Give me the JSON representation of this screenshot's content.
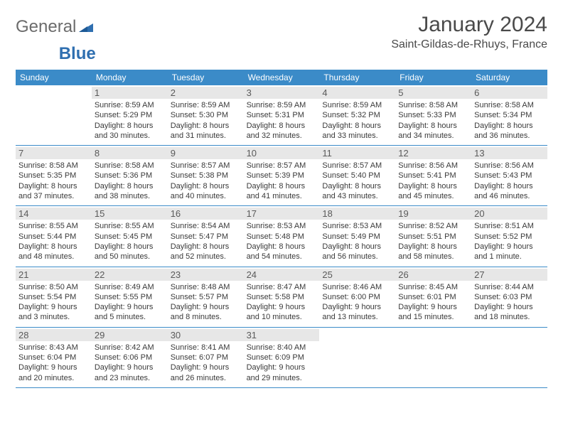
{
  "logo": {
    "text1": "General",
    "text2": "Blue"
  },
  "title": "January 2024",
  "location": "Saint-Gildas-de-Rhuys, France",
  "colors": {
    "header_bg": "#3b8bc8",
    "header_text": "#ffffff",
    "daynum_bg": "#e7e7e7",
    "border": "#3b8bc8",
    "logo_gray": "#6b6b6b",
    "logo_blue": "#2f6fb0"
  },
  "weekdays": [
    "Sunday",
    "Monday",
    "Tuesday",
    "Wednesday",
    "Thursday",
    "Friday",
    "Saturday"
  ],
  "weeks": [
    [
      {
        "n": "",
        "lines": []
      },
      {
        "n": "1",
        "lines": [
          "Sunrise: 8:59 AM",
          "Sunset: 5:29 PM",
          "Daylight: 8 hours",
          "and 30 minutes."
        ]
      },
      {
        "n": "2",
        "lines": [
          "Sunrise: 8:59 AM",
          "Sunset: 5:30 PM",
          "Daylight: 8 hours",
          "and 31 minutes."
        ]
      },
      {
        "n": "3",
        "lines": [
          "Sunrise: 8:59 AM",
          "Sunset: 5:31 PM",
          "Daylight: 8 hours",
          "and 32 minutes."
        ]
      },
      {
        "n": "4",
        "lines": [
          "Sunrise: 8:59 AM",
          "Sunset: 5:32 PM",
          "Daylight: 8 hours",
          "and 33 minutes."
        ]
      },
      {
        "n": "5",
        "lines": [
          "Sunrise: 8:58 AM",
          "Sunset: 5:33 PM",
          "Daylight: 8 hours",
          "and 34 minutes."
        ]
      },
      {
        "n": "6",
        "lines": [
          "Sunrise: 8:58 AM",
          "Sunset: 5:34 PM",
          "Daylight: 8 hours",
          "and 36 minutes."
        ]
      }
    ],
    [
      {
        "n": "7",
        "lines": [
          "Sunrise: 8:58 AM",
          "Sunset: 5:35 PM",
          "Daylight: 8 hours",
          "and 37 minutes."
        ]
      },
      {
        "n": "8",
        "lines": [
          "Sunrise: 8:58 AM",
          "Sunset: 5:36 PM",
          "Daylight: 8 hours",
          "and 38 minutes."
        ]
      },
      {
        "n": "9",
        "lines": [
          "Sunrise: 8:57 AM",
          "Sunset: 5:38 PM",
          "Daylight: 8 hours",
          "and 40 minutes."
        ]
      },
      {
        "n": "10",
        "lines": [
          "Sunrise: 8:57 AM",
          "Sunset: 5:39 PM",
          "Daylight: 8 hours",
          "and 41 minutes."
        ]
      },
      {
        "n": "11",
        "lines": [
          "Sunrise: 8:57 AM",
          "Sunset: 5:40 PM",
          "Daylight: 8 hours",
          "and 43 minutes."
        ]
      },
      {
        "n": "12",
        "lines": [
          "Sunrise: 8:56 AM",
          "Sunset: 5:41 PM",
          "Daylight: 8 hours",
          "and 45 minutes."
        ]
      },
      {
        "n": "13",
        "lines": [
          "Sunrise: 8:56 AM",
          "Sunset: 5:43 PM",
          "Daylight: 8 hours",
          "and 46 minutes."
        ]
      }
    ],
    [
      {
        "n": "14",
        "lines": [
          "Sunrise: 8:55 AM",
          "Sunset: 5:44 PM",
          "Daylight: 8 hours",
          "and 48 minutes."
        ]
      },
      {
        "n": "15",
        "lines": [
          "Sunrise: 8:55 AM",
          "Sunset: 5:45 PM",
          "Daylight: 8 hours",
          "and 50 minutes."
        ]
      },
      {
        "n": "16",
        "lines": [
          "Sunrise: 8:54 AM",
          "Sunset: 5:47 PM",
          "Daylight: 8 hours",
          "and 52 minutes."
        ]
      },
      {
        "n": "17",
        "lines": [
          "Sunrise: 8:53 AM",
          "Sunset: 5:48 PM",
          "Daylight: 8 hours",
          "and 54 minutes."
        ]
      },
      {
        "n": "18",
        "lines": [
          "Sunrise: 8:53 AM",
          "Sunset: 5:49 PM",
          "Daylight: 8 hours",
          "and 56 minutes."
        ]
      },
      {
        "n": "19",
        "lines": [
          "Sunrise: 8:52 AM",
          "Sunset: 5:51 PM",
          "Daylight: 8 hours",
          "and 58 minutes."
        ]
      },
      {
        "n": "20",
        "lines": [
          "Sunrise: 8:51 AM",
          "Sunset: 5:52 PM",
          "Daylight: 9 hours",
          "and 1 minute."
        ]
      }
    ],
    [
      {
        "n": "21",
        "lines": [
          "Sunrise: 8:50 AM",
          "Sunset: 5:54 PM",
          "Daylight: 9 hours",
          "and 3 minutes."
        ]
      },
      {
        "n": "22",
        "lines": [
          "Sunrise: 8:49 AM",
          "Sunset: 5:55 PM",
          "Daylight: 9 hours",
          "and 5 minutes."
        ]
      },
      {
        "n": "23",
        "lines": [
          "Sunrise: 8:48 AM",
          "Sunset: 5:57 PM",
          "Daylight: 9 hours",
          "and 8 minutes."
        ]
      },
      {
        "n": "24",
        "lines": [
          "Sunrise: 8:47 AM",
          "Sunset: 5:58 PM",
          "Daylight: 9 hours",
          "and 10 minutes."
        ]
      },
      {
        "n": "25",
        "lines": [
          "Sunrise: 8:46 AM",
          "Sunset: 6:00 PM",
          "Daylight: 9 hours",
          "and 13 minutes."
        ]
      },
      {
        "n": "26",
        "lines": [
          "Sunrise: 8:45 AM",
          "Sunset: 6:01 PM",
          "Daylight: 9 hours",
          "and 15 minutes."
        ]
      },
      {
        "n": "27",
        "lines": [
          "Sunrise: 8:44 AM",
          "Sunset: 6:03 PM",
          "Daylight: 9 hours",
          "and 18 minutes."
        ]
      }
    ],
    [
      {
        "n": "28",
        "lines": [
          "Sunrise: 8:43 AM",
          "Sunset: 6:04 PM",
          "Daylight: 9 hours",
          "and 20 minutes."
        ]
      },
      {
        "n": "29",
        "lines": [
          "Sunrise: 8:42 AM",
          "Sunset: 6:06 PM",
          "Daylight: 9 hours",
          "and 23 minutes."
        ]
      },
      {
        "n": "30",
        "lines": [
          "Sunrise: 8:41 AM",
          "Sunset: 6:07 PM",
          "Daylight: 9 hours",
          "and 26 minutes."
        ]
      },
      {
        "n": "31",
        "lines": [
          "Sunrise: 8:40 AM",
          "Sunset: 6:09 PM",
          "Daylight: 9 hours",
          "and 29 minutes."
        ]
      },
      {
        "n": "",
        "lines": []
      },
      {
        "n": "",
        "lines": []
      },
      {
        "n": "",
        "lines": []
      }
    ]
  ]
}
